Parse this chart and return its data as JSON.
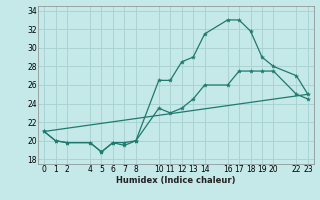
{
  "xlabel": "Humidex (Indice chaleur)",
  "bg_color": "#c5e8e8",
  "grid_color": "#a8d0d0",
  "line_color": "#1e7a6e",
  "xlim": [
    -0.5,
    23.5
  ],
  "ylim": [
    17.5,
    34.5
  ],
  "xticks": [
    0,
    1,
    2,
    4,
    5,
    6,
    7,
    8,
    10,
    11,
    12,
    13,
    14,
    16,
    17,
    18,
    19,
    20,
    22,
    23
  ],
  "yticks": [
    18,
    20,
    22,
    24,
    26,
    28,
    30,
    32,
    34
  ],
  "line1_x": [
    0,
    1,
    2,
    4,
    5,
    6,
    7,
    8,
    10,
    11,
    12,
    13,
    14,
    16,
    17,
    18,
    19,
    20,
    22,
    23
  ],
  "line1_y": [
    21,
    20,
    19.8,
    19.8,
    18.8,
    19.8,
    19.8,
    20,
    26.5,
    26.5,
    28.5,
    29,
    31.5,
    33.0,
    33.0,
    31.8,
    29.0,
    28.0,
    27.0,
    25.0
  ],
  "line2_x": [
    0,
    1,
    2,
    4,
    5,
    6,
    7,
    8,
    10,
    11,
    12,
    13,
    14,
    16,
    17,
    18,
    19,
    20,
    22,
    23
  ],
  "line2_y": [
    21,
    20,
    19.8,
    19.8,
    18.8,
    19.8,
    19.5,
    20,
    23.5,
    23.0,
    23.5,
    24.5,
    26.0,
    26.0,
    27.5,
    27.5,
    27.5,
    27.5,
    25.0,
    24.5
  ],
  "line3_x": [
    0,
    23
  ],
  "line3_y": [
    21,
    25.0
  ]
}
